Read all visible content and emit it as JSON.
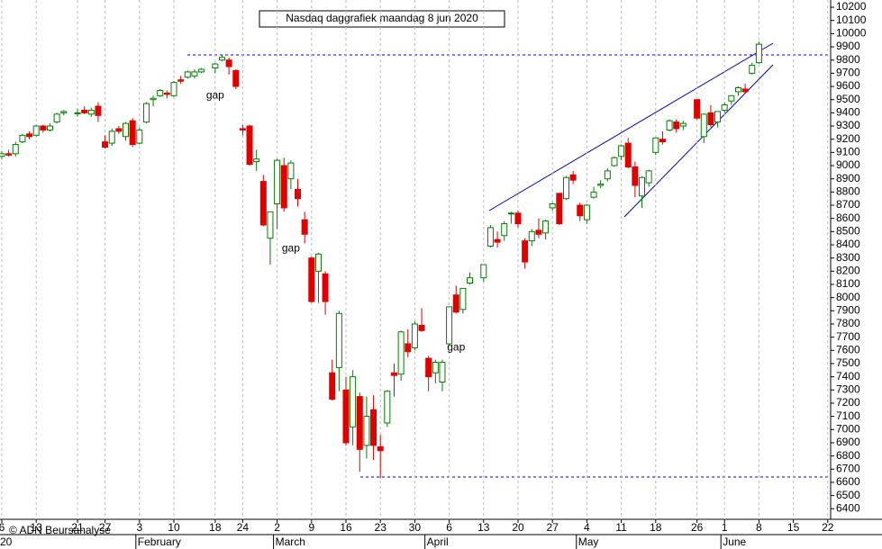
{
  "chart_data": {
    "type": "candlestick",
    "title": "Nasdaq daggrafiek maandag 8 jun 2020",
    "x": [
      "2020-01-06",
      "2020-01-07",
      "2020-01-08",
      "2020-01-09",
      "2020-01-10",
      "2020-01-13",
      "2020-01-14",
      "2020-01-15",
      "2020-01-16",
      "2020-01-17",
      "2020-01-21",
      "2020-01-22",
      "2020-01-23",
      "2020-01-24",
      "2020-01-27",
      "2020-01-28",
      "2020-01-29",
      "2020-01-30",
      "2020-01-31",
      "2020-02-03",
      "2020-02-04",
      "2020-02-05",
      "2020-02-06",
      "2020-02-07",
      "2020-02-10",
      "2020-02-11",
      "2020-02-12",
      "2020-02-13",
      "2020-02-14",
      "2020-02-18",
      "2020-02-19",
      "2020-02-20",
      "2020-02-21",
      "2020-02-24",
      "2020-02-25",
      "2020-02-26",
      "2020-02-27",
      "2020-02-28",
      "2020-03-02",
      "2020-03-03",
      "2020-03-04",
      "2020-03-05",
      "2020-03-06",
      "2020-03-09",
      "2020-03-10",
      "2020-03-11",
      "2020-03-12",
      "2020-03-13",
      "2020-03-16",
      "2020-03-17",
      "2020-03-18",
      "2020-03-19",
      "2020-03-20",
      "2020-03-23",
      "2020-03-24",
      "2020-03-25",
      "2020-03-26",
      "2020-03-27",
      "2020-03-30",
      "2020-03-31",
      "2020-04-01",
      "2020-04-02",
      "2020-04-03",
      "2020-04-06",
      "2020-04-07",
      "2020-04-08",
      "2020-04-09",
      "2020-04-13",
      "2020-04-14",
      "2020-04-15",
      "2020-04-16",
      "2020-04-17",
      "2020-04-20",
      "2020-04-21",
      "2020-04-22",
      "2020-04-23",
      "2020-04-24",
      "2020-04-27",
      "2020-04-28",
      "2020-04-29",
      "2020-04-30",
      "2020-05-01",
      "2020-05-04",
      "2020-05-05",
      "2020-05-06",
      "2020-05-07",
      "2020-05-08",
      "2020-05-11",
      "2020-05-12",
      "2020-05-13",
      "2020-05-14",
      "2020-05-15",
      "2020-05-18",
      "2020-05-19",
      "2020-05-20",
      "2020-05-21",
      "2020-05-22",
      "2020-05-26",
      "2020-05-27",
      "2020-05-28",
      "2020-05-29",
      "2020-06-01",
      "2020-06-02",
      "2020-06-03",
      "2020-06-04",
      "2020-06-05",
      "2020-06-08"
    ],
    "open": [
      9070,
      9090,
      9090,
      9180,
      9240,
      9230,
      9300,
      9270,
      9330,
      9400,
      9400,
      9420,
      9390,
      9450,
      9180,
      9170,
      9280,
      9220,
      9340,
      9170,
      9330,
      9500,
      9530,
      9550,
      9530,
      9650,
      9670,
      9680,
      9710,
      9740,
      9800,
      9800,
      9720,
      9280,
      9300,
      9030,
      8880,
      8450,
      8710,
      9000,
      8900,
      8820,
      8590,
      8300,
      8200,
      8180,
      7430,
      7470,
      7300,
      7020,
      7250,
      6880,
      7150,
      6870,
      7050,
      7430,
      7420,
      7650,
      7620,
      7790,
      7540,
      7430,
      7360,
      7650,
      8020,
      7910,
      8110,
      8150,
      8390,
      8440,
      8470,
      8640,
      8640,
      8430,
      8430,
      8510,
      8490,
      8680,
      8790,
      8750,
      8930,
      8700,
      8590,
      8760,
      8850,
      8900,
      9000,
      9070,
      9170,
      8990,
      8770,
      8870,
      9100,
      9200,
      9270,
      9330,
      9300,
      9500,
      9220,
      9400,
      9330,
      9420,
      9490,
      9560,
      9580,
      9700,
      9780
    ],
    "high": [
      9110,
      9120,
      9180,
      9240,
      9260,
      9310,
      9310,
      9320,
      9400,
      9420,
      9430,
      9450,
      9440,
      9480,
      9230,
      9280,
      9300,
      9330,
      9360,
      9290,
      9480,
      9530,
      9580,
      9570,
      9640,
      9680,
      9720,
      9730,
      9740,
      9780,
      9840,
      9820,
      9730,
      9310,
      9310,
      9120,
      8930,
      8650,
      9050,
      9060,
      9040,
      8900,
      8650,
      8310,
      8340,
      8200,
      7530,
      7900,
      7400,
      7450,
      7280,
      7250,
      7260,
      6960,
      7300,
      7500,
      7750,
      7760,
      7820,
      7920,
      7560,
      7530,
      7530,
      7930,
      8090,
      8070,
      8190,
      8250,
      8550,
      8500,
      8580,
      8650,
      8660,
      8450,
      8520,
      8600,
      8590,
      8720,
      8790,
      8920,
      8960,
      8720,
      8710,
      8840,
      8890,
      8980,
      9070,
      9160,
      9210,
      9030,
      8920,
      8970,
      9210,
      9260,
      9350,
      9350,
      9340,
      9500,
      9390,
      9460,
      9410,
      9480,
      9530,
      9600,
      9620,
      9780,
      9940
    ],
    "low": [
      9050,
      9070,
      9070,
      9170,
      9200,
      9220,
      9250,
      9260,
      9320,
      9380,
      9370,
      9390,
      9370,
      9330,
      9130,
      9150,
      9240,
      9190,
      9140,
      9160,
      9320,
      9450,
      9520,
      9510,
      9520,
      9620,
      9660,
      9660,
      9700,
      9700,
      9790,
      9690,
      9580,
      9230,
      9000,
      8960,
      8540,
      8250,
      8520,
      8650,
      8820,
      8690,
      8410,
      7960,
      7960,
      7870,
      7220,
      7290,
      6880,
      6880,
      6680,
      6780,
      6770,
      6630,
      7020,
      7250,
      7370,
      7550,
      7600,
      7740,
      7290,
      7350,
      7290,
      7640,
      7880,
      7880,
      8100,
      8120,
      8380,
      8380,
      8430,
      8560,
      8530,
      8220,
      8390,
      8450,
      8440,
      8660,
      8550,
      8740,
      8860,
      8580,
      8560,
      8750,
      8830,
      8880,
      8990,
      9040,
      8980,
      8760,
      8680,
      8840,
      9080,
      9160,
      9260,
      9250,
      9270,
      9350,
      9170,
      9290,
      9290,
      9400,
      9460,
      9530,
      9550,
      9690,
      9770
    ],
    "close": [
      9090,
      9080,
      9160,
      9230,
      9220,
      9300,
      9270,
      9300,
      9390,
      9410,
      9400,
      9400,
      9420,
      9380,
      9140,
      9260,
      9260,
      9320,
      9160,
      9270,
      9470,
      9510,
      9570,
      9540,
      9630,
      9640,
      9710,
      9710,
      9730,
      9770,
      9820,
      9750,
      9600,
      9270,
      9010,
      9050,
      8550,
      8650,
      9040,
      8680,
      9020,
      8750,
      8480,
      7970,
      8330,
      7970,
      7230,
      7880,
      6900,
      7400,
      6850,
      7100,
      6880,
      6840,
      7290,
      7410,
      7740,
      7590,
      7800,
      7750,
      7400,
      7510,
      7510,
      7930,
      7890,
      8070,
      8150,
      8250,
      8530,
      8420,
      8560,
      8640,
      8560,
      8270,
      8500,
      8480,
      8580,
      8710,
      8560,
      8910,
      8890,
      8620,
      8700,
      8800,
      8860,
      8960,
      9060,
      9150,
      8990,
      8850,
      8910,
      8960,
      9210,
      9180,
      9340,
      9280,
      9320,
      9360,
      9390,
      9310,
      9410,
      9460,
      9530,
      9590,
      9560,
      9760,
      9920
    ],
    "ylim": [
      6320,
      10255
    ],
    "yticks": [
      6400,
      6500,
      6600,
      6700,
      6800,
      6900,
      7000,
      7100,
      7200,
      7300,
      7400,
      7500,
      7600,
      7700,
      7800,
      7900,
      8000,
      8100,
      8200,
      8300,
      8400,
      8500,
      8600,
      8700,
      8800,
      8900,
      9000,
      9100,
      9200,
      9300,
      9400,
      9500,
      9600,
      9700,
      9800,
      9900,
      10000,
      10100,
      10200
    ],
    "xticks": [
      {
        "value": "2020-01-06",
        "label": "6"
      },
      {
        "value": "2020-01-13",
        "label": "13"
      },
      {
        "value": "2020-01-21",
        "label": "21"
      },
      {
        "value": "2020-01-27",
        "label": "27"
      },
      {
        "value": "2020-02-03",
        "label": "3"
      },
      {
        "value": "2020-02-10",
        "label": "10"
      },
      {
        "value": "2020-02-18",
        "label": "18"
      },
      {
        "value": "2020-02-24",
        "label": "24"
      },
      {
        "value": "2020-03-02",
        "label": "2"
      },
      {
        "value": "2020-03-09",
        "label": "9"
      },
      {
        "value": "2020-03-16",
        "label": "16"
      },
      {
        "value": "2020-03-23",
        "label": "23"
      },
      {
        "value": "2020-03-30",
        "label": "30"
      },
      {
        "value": "2020-04-06",
        "label": "6"
      },
      {
        "value": "2020-04-13",
        "label": "13"
      },
      {
        "value": "2020-04-20",
        "label": "20"
      },
      {
        "value": "2020-04-27",
        "label": "27"
      },
      {
        "value": "2020-05-04",
        "label": "4"
      },
      {
        "value": "2020-05-11",
        "label": "11"
      },
      {
        "value": "2020-05-18",
        "label": "18"
      },
      {
        "value": "2020-05-26",
        "label": "26"
      },
      {
        "value": "2020-06-01",
        "label": "1"
      },
      {
        "value": "2020-06-08",
        "label": "8"
      },
      {
        "value": "2020-06-15",
        "label": "15"
      },
      {
        "value": "2020-06-22",
        "label": "22"
      }
    ],
    "month_ticks": [
      {
        "value": "2020-01-06",
        "label": "20"
      },
      {
        "value": "2020-02-03",
        "label": "February"
      },
      {
        "value": "2020-03-02",
        "label": "March"
      },
      {
        "value": "2020-04-01",
        "label": "April"
      },
      {
        "value": "2020-05-01",
        "label": "May"
      },
      {
        "value": "2020-06-01",
        "label": "June"
      }
    ],
    "up_color": "#008000",
    "down_color": "#e00000",
    "grid": true,
    "annotations": [
      {
        "text": "gap",
        "color": "#aaaaaa",
        "x": "2020-02-18",
        "y": 9530
      },
      {
        "text": "gap",
        "color": "#aaaaaa",
        "x": "2020-03-04",
        "y": 8370
      },
      {
        "text": "gap",
        "color": "#000000",
        "x": "2020-04-07",
        "y": 7620
      }
    ],
    "footer": "© ADN Beursanalyse"
  }
}
